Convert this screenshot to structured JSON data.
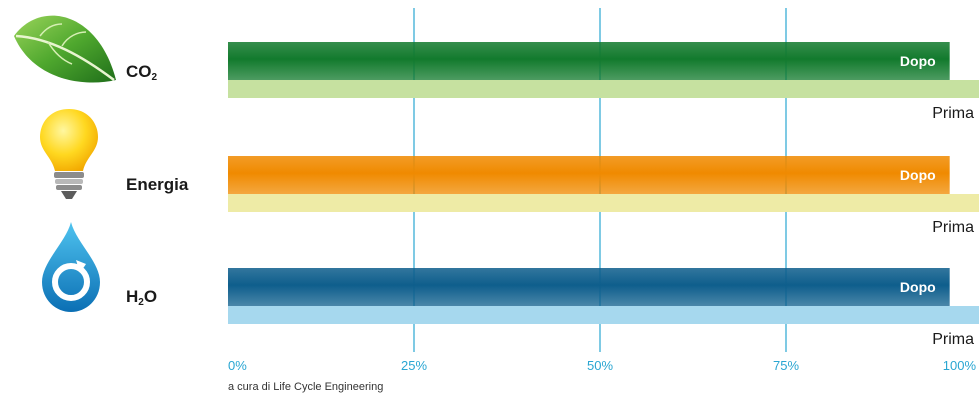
{
  "chart_data": {
    "type": "bar",
    "orientation": "horizontal",
    "categories": [
      "CO2",
      "Energia",
      "H2O"
    ],
    "category_labels": [
      {
        "main": "CO",
        "sub": "2",
        "tail": ""
      },
      {
        "main": "Energia",
        "sub": "",
        "tail": ""
      },
      {
        "main": "H",
        "sub": "2",
        "tail": "O"
      }
    ],
    "series": [
      {
        "name": "Dopo",
        "values": [
          97,
          97,
          97
        ],
        "colors": [
          "#127a2d",
          "#f08a00",
          "#0e5e8c"
        ]
      },
      {
        "name": "Prima",
        "values": [
          100,
          100,
          100
        ],
        "colors": [
          "#c6e1a0",
          "#eeeba6",
          "#a6d8ee"
        ]
      }
    ],
    "x_ticks": [
      "0%",
      "25%",
      "50%",
      "75%",
      "100%"
    ],
    "x_tick_values": [
      0,
      25,
      50,
      75,
      100
    ],
    "xlim": [
      0,
      100
    ],
    "grid": true,
    "grid_color": "#2aa6d2",
    "tick_label_color": "#2aa6d2",
    "footnote": "a cura di Life Cycle Engineering",
    "icons": [
      "leaf-icon",
      "lightbulb-icon",
      "water-drop-icon"
    ]
  }
}
